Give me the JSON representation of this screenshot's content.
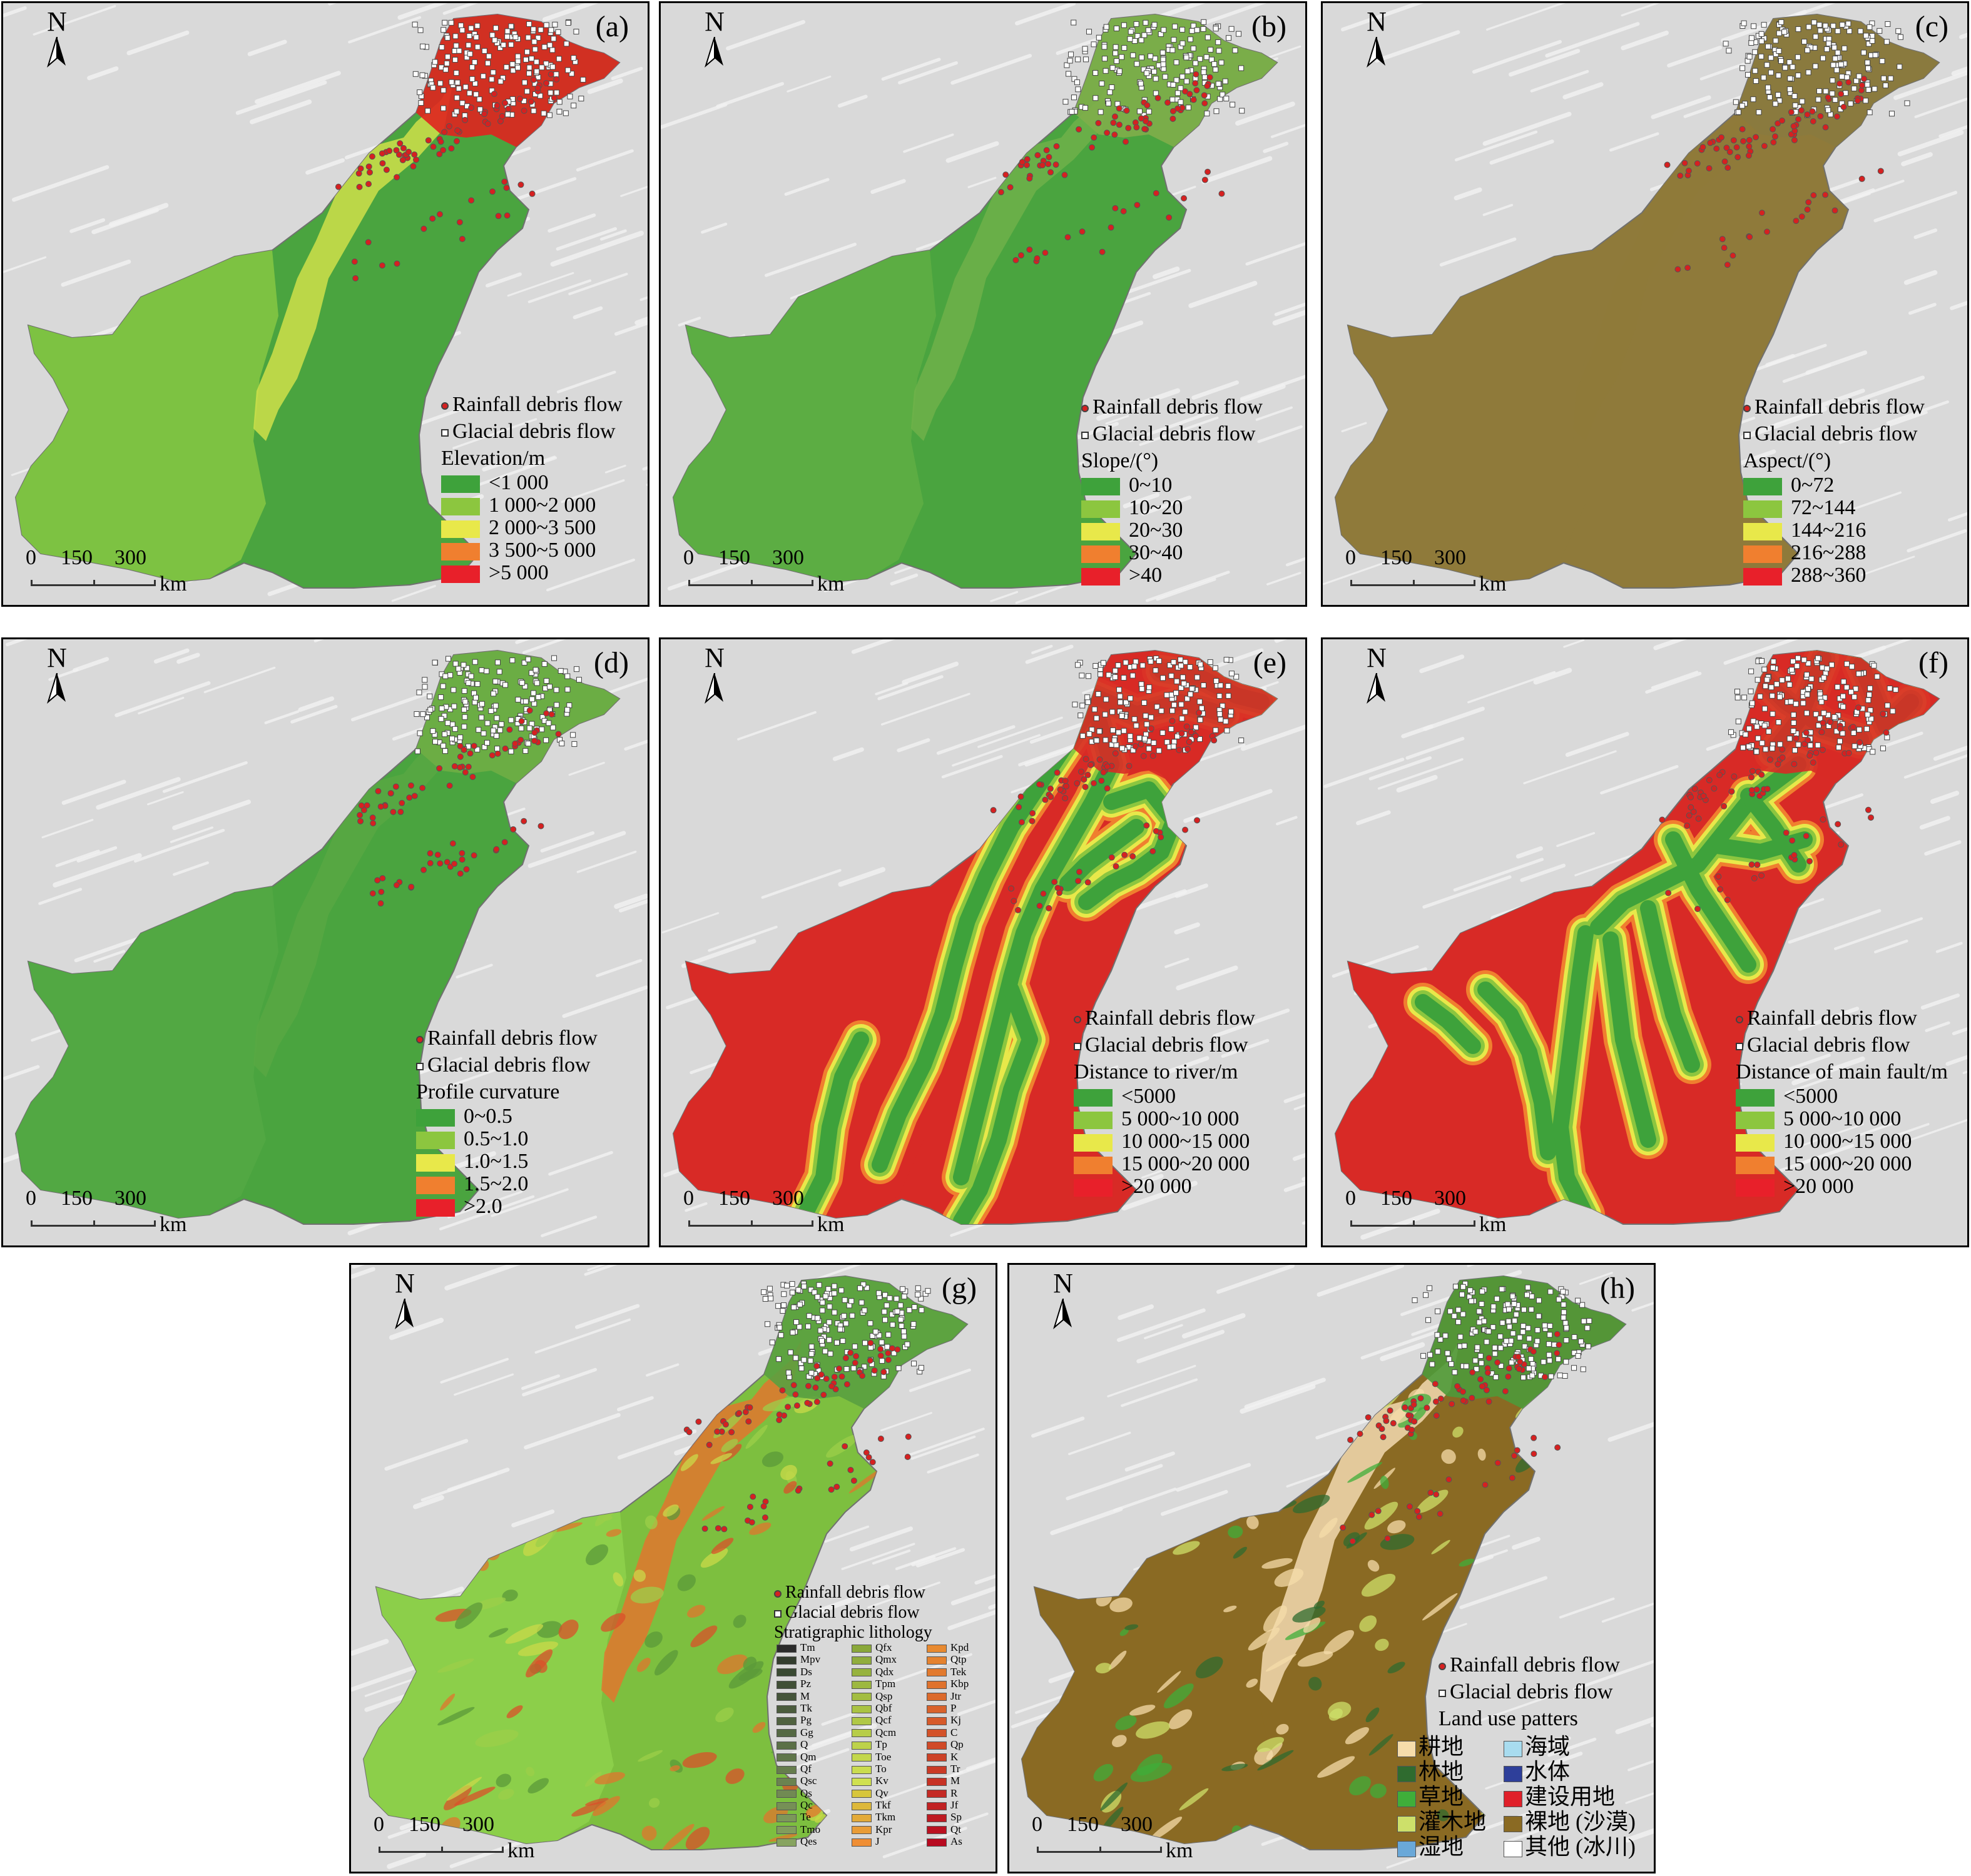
{
  "common": {
    "north_label": "N",
    "rainfall_label": "Rainfall debris flow",
    "glacial_label": "Glacial debris flow",
    "scale_ticks": [
      "0",
      "150",
      "300"
    ],
    "scale_unit": "km",
    "rainfall_color": "#d62020",
    "glacial_color": "#ffffff"
  },
  "panels": [
    {
      "label": "(a)",
      "legend_title": "Elevation/m",
      "base_color": "#4aa43f",
      "west_color": "#7dc242",
      "north_color": "#e0241f",
      "corridor_color": "#cfe04a",
      "classes": [
        {
          "label": "<1 000",
          "color": "#3ea23b"
        },
        {
          "label": "1 000~2 000",
          "color": "#8cc63f"
        },
        {
          "label": "2 000~3 500",
          "color": "#e8e84a"
        },
        {
          "label": "3 500~5 000",
          "color": "#f07f2f"
        },
        {
          "label": ">5 000",
          "color": "#e8202a"
        }
      ]
    },
    {
      "label": "(b)",
      "legend_title": "Slope/(°)",
      "base_color": "#4aa43f",
      "west_color": "#5cad43",
      "north_color": "#7fae4a",
      "corridor_color": "#6fb24a",
      "classes": [
        {
          "label": "0~10",
          "color": "#3ea23b"
        },
        {
          "label": "10~20",
          "color": "#8cc63f"
        },
        {
          "label": "20~30",
          "color": "#e8e84a"
        },
        {
          "label": "30~40",
          "color": "#f07f2f"
        },
        {
          "label": ">40",
          "color": "#e8202a"
        }
      ]
    },
    {
      "label": "(c)",
      "legend_title": "Aspect/(°)",
      "base_color": "#8f7a3a",
      "west_color": "#8f7a3a",
      "north_color": "#8a7a3f",
      "corridor_color": "#8f7a3a",
      "classes": [
        {
          "label": "0~72",
          "color": "#3ea23b"
        },
        {
          "label": "72~144",
          "color": "#8cc63f"
        },
        {
          "label": "144~216",
          "color": "#e8e84a"
        },
        {
          "label": "216~288",
          "color": "#f07f2f"
        },
        {
          "label": "288~360",
          "color": "#e8202a"
        }
      ]
    },
    {
      "label": "(d)",
      "legend_title": "Profile curvature",
      "base_color": "#4aa43f",
      "west_color": "#52a843",
      "north_color": "#6fae45",
      "corridor_color": "#58a843",
      "classes": [
        {
          "label": "0~0.5",
          "color": "#3ea23b"
        },
        {
          "label": "0.5~1.0",
          "color": "#8cc63f"
        },
        {
          "label": "1.0~1.5",
          "color": "#e8e84a"
        },
        {
          "label": "1.5~2.0",
          "color": "#f07f2f"
        },
        {
          "label": ">2.0",
          "color": "#e8202a"
        }
      ]
    },
    {
      "label": "(e)",
      "legend_title": "Distance to river/m",
      "base_color": "#d82a26",
      "west_color": "#d82a26",
      "north_color": "#d82a26",
      "corridor_color": "#4aa43f",
      "classes": [
        {
          "label": "<5000",
          "color": "#3ea23b"
        },
        {
          "label": "5 000~10 000",
          "color": "#8cc63f"
        },
        {
          "label": "10 000~15 000",
          "color": "#e8e84a"
        },
        {
          "label": "15 000~20 000",
          "color": "#f07f2f"
        },
        {
          "label": ">20 000",
          "color": "#e8202a"
        }
      ]
    },
    {
      "label": "(f)",
      "legend_title": "Distance of main fault/m",
      "base_color": "#d82a26",
      "west_color": "#d82a26",
      "north_color": "#d82a26",
      "corridor_color": "#4aa43f",
      "classes": [
        {
          "label": "<5000",
          "color": "#3ea23b"
        },
        {
          "label": "5 000~10 000",
          "color": "#8cc63f"
        },
        {
          "label": "10 000~15 000",
          "color": "#e8e84a"
        },
        {
          "label": "15 000~20 000",
          "color": "#f07f2f"
        },
        {
          "label": ">20 000",
          "color": "#e8202a"
        }
      ]
    },
    {
      "label": "(g)",
      "legend_title": "Stratigraphic lithology",
      "base_color": "#7dbf3f",
      "west_color": "#8ccf4a",
      "north_color": "#5aa040",
      "corridor_color": "#e0762e",
      "lithology": [
        [
          "Tm",
          "Mpv",
          "Ds",
          "Pz",
          "M",
          "Tk",
          "Pg",
          "Gg",
          "Q",
          "Qm",
          "Qf",
          "Qsc",
          "Qs",
          "Qc",
          "Te",
          "Tmo",
          "Qes"
        ],
        [
          "Qfx",
          "Qmx",
          "Qdx",
          "Tpm",
          "Qsp",
          "Qbf",
          "Qcf",
          "Qcm",
          "Tp",
          "Toe",
          "To",
          "Kv",
          "Qv",
          "Tkf",
          "Tkm",
          "Kpr",
          "J"
        ],
        [
          "Kpd",
          "Qtp",
          "Tek",
          "Kbp",
          "Jtr",
          "P",
          "Kj",
          "C",
          "Qp",
          "K",
          "Tr",
          "M",
          "R",
          "Jf",
          "Sp",
          "Qt",
          "As"
        ]
      ],
      "lithology_colors": [
        [
          "#2b2b2b",
          "#333d2e",
          "#3a4a33",
          "#404f36",
          "#45553a",
          "#4b5c3d",
          "#506240",
          "#556944",
          "#5b7047",
          "#60764a",
          "#667d4d",
          "#6b8350",
          "#718a53",
          "#769056",
          "#7c975a",
          "#819d5d",
          "#87a460"
        ],
        [
          "#8aa83a",
          "#90ad3c",
          "#97b33e",
          "#9db840",
          "#a3bd42",
          "#aac344",
          "#b0c846",
          "#b7cd48",
          "#bdd24a",
          "#c3d74c",
          "#cadc4e",
          "#d0e150",
          "#d7c63c",
          "#ddb83a",
          "#e3aa38",
          "#e99c36",
          "#ef8e34"
        ],
        [
          "#e88a30",
          "#e5822f",
          "#e27a2e",
          "#df722d",
          "#dc6a2c",
          "#d9622b",
          "#d65a2a",
          "#d35229",
          "#d04a28",
          "#cd4227",
          "#ca3a26",
          "#c73225",
          "#c42a24",
          "#c12223",
          "#be1a22",
          "#bb1221",
          "#b80a20"
        ]
      ]
    },
    {
      "label": "(h)",
      "legend_title": "Land use patters",
      "base_color": "#8a6a23",
      "west_color": "#8a6a23",
      "north_color": "#4e9a3a",
      "corridor_color": "#f2d9b0",
      "land_use": [
        {
          "label": "耕地",
          "color": "#f6dcaa"
        },
        {
          "label": "海域",
          "color": "#a8dcef"
        },
        {
          "label": "林地",
          "color": "#2f6b2f"
        },
        {
          "label": "水体",
          "color": "#2e3f9a"
        },
        {
          "label": "草地",
          "color": "#3fae3a"
        },
        {
          "label": "建设用地",
          "color": "#e0202a"
        },
        {
          "label": "灌木地",
          "color": "#cde06a"
        },
        {
          "label": "裸地 (沙漠)",
          "color": "#8a6a23"
        },
        {
          "label": "湿地",
          "color": "#6aa8d8"
        },
        {
          "label": "其他 (冰川)",
          "color": "#ffffff"
        }
      ]
    }
  ]
}
